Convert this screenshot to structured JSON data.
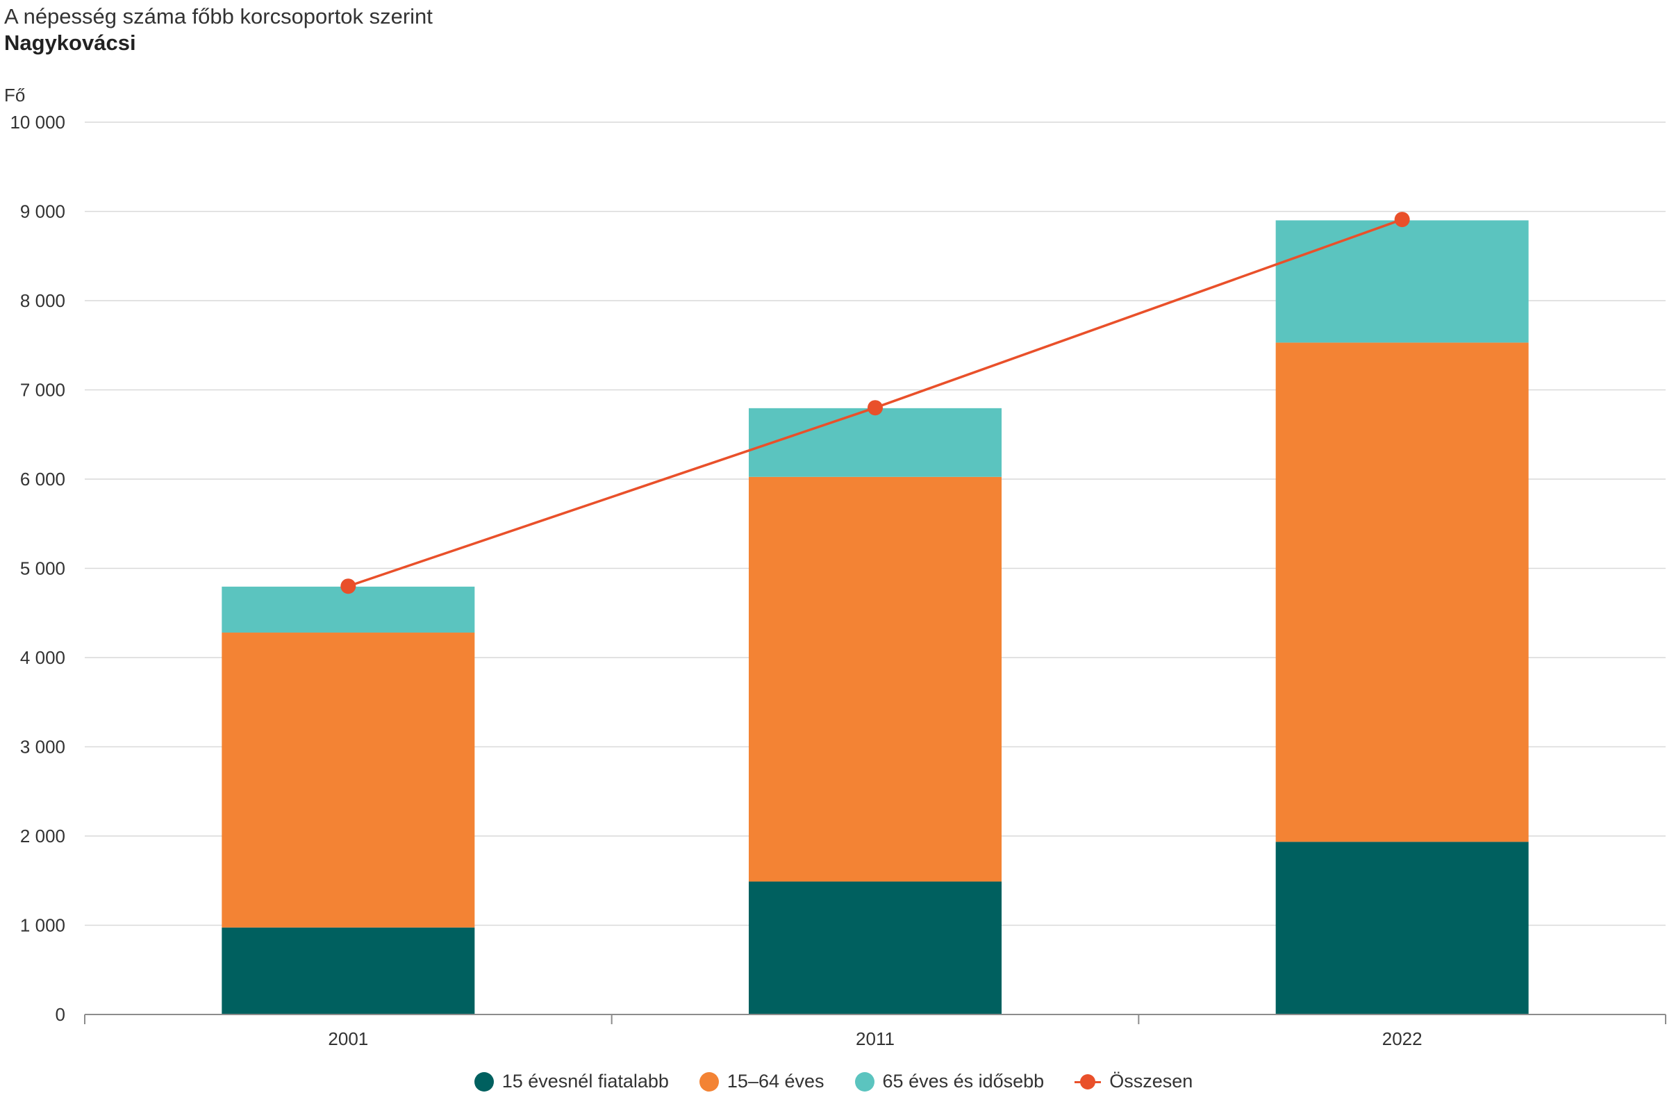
{
  "chart_data": {
    "type": "bar",
    "stacked": true,
    "title": "A népesség száma főbb korcsoportok szerint",
    "subtitle": "Nagykovácsi",
    "ylabel": "Fő",
    "ylim": [
      0,
      10000
    ],
    "yticks": [
      0,
      1000,
      2000,
      3000,
      4000,
      5000,
      6000,
      7000,
      8000,
      9000,
      10000
    ],
    "ytick_labels": [
      "0",
      "1 000",
      "2 000",
      "3 000",
      "4 000",
      "5 000",
      "6 000",
      "7 000",
      "8 000",
      "9 000",
      "10 000"
    ],
    "grid": true,
    "legend_position": "bottom",
    "categories": [
      "2001",
      "2011",
      "2022"
    ],
    "series": [
      {
        "name": "15 évesnél fiatalabb",
        "type": "bar",
        "color": "#00605f",
        "values": [
          975,
          1490,
          1935
        ]
      },
      {
        "name": "15–64 éves",
        "type": "bar",
        "color": "#f38334",
        "values": [
          3305,
          4535,
          5595
        ]
      },
      {
        "name": "65 éves és idősebb",
        "type": "bar",
        "color": "#5bc4bf",
        "values": [
          515,
          770,
          1370
        ]
      },
      {
        "name": "Összesen",
        "type": "line",
        "color": "#e9502a",
        "values": [
          4800,
          6800,
          8910
        ]
      }
    ]
  }
}
